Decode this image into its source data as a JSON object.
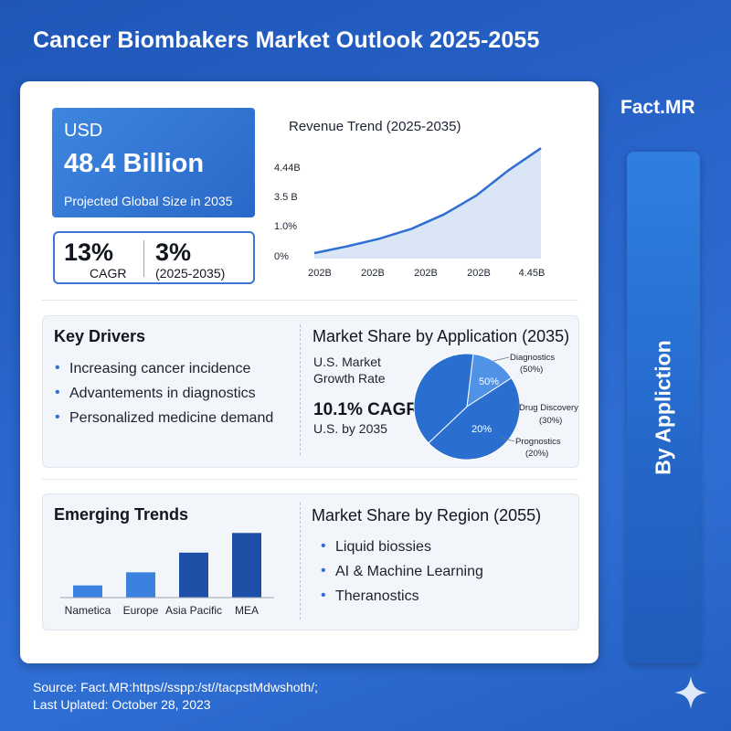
{
  "header": {
    "title": "Cancer Biombakers Market Outlook 2025-2055"
  },
  "brand": "Fact.MR",
  "side_tab": {
    "label": "By Appliction"
  },
  "kpi": {
    "currency": "USD",
    "value": "48.4 Billion",
    "caption": "Projected Global Size in 2035",
    "cagr_value": "13%",
    "cagr_label": "CAGR",
    "period_value": "3%",
    "period_label": "(2025-2035)"
  },
  "drivers": {
    "title": "Key Drivers",
    "items": [
      "Increasing cancer incidence",
      "Advantements in diagnostics",
      "Personalized medicine demand"
    ]
  },
  "trends": {
    "title": "Emerging Trends"
  },
  "region": {
    "title": "Market Share by Region (2055)",
    "items": [
      "Liquid biossies",
      "AI & Machine Learning",
      "Theranostics"
    ]
  },
  "application": {
    "title": "Market Share by Application (2035)",
    "us_label_1": "U.S. Market",
    "us_label_2": "Growth Rate",
    "us_value": "10.1% CAGR",
    "us_caption": "U.S. by 2035"
  },
  "footer": {
    "source": "Source: Fact.MR:https//sspp:/st//tacpstMdwshoth/;",
    "updated": "Last Uplated: October 28, 2023"
  },
  "colors": {
    "background": "#2a66cc",
    "accent": "#2f6fd4",
    "area_fill": "#d6e2f5",
    "bar_light": "#3b82e0",
    "bar_dark": "#1e4fa6",
    "pie_main": "#2a6fd0",
    "pie_light": "#4f92e6"
  },
  "icons": {
    "sparkle": "sparkle-icon"
  },
  "chart_data": [
    {
      "type": "area",
      "title": "Revenue Trend (2025-2035)",
      "x_tick_labels": [
        "202B",
        "202B",
        "202B",
        "202B",
        "4.45B"
      ],
      "y_tick_labels": [
        "0%",
        "1.0%",
        "3.5 B",
        "4.44B"
      ],
      "y": [
        0.05,
        0.11,
        0.18,
        0.27,
        0.4,
        0.57,
        0.8,
        1.0
      ],
      "ylim": [
        0,
        1.2
      ]
    },
    {
      "type": "bar",
      "categories": [
        "Nametica",
        "Europe",
        "Asia Pacific",
        "MEA"
      ],
      "values": [
        13,
        27,
        48,
        69
      ],
      "ylim": [
        0,
        80
      ]
    },
    {
      "type": "pie",
      "slices": [
        {
          "name": "Diagnostics",
          "value": 50,
          "pct_label": "(50%)",
          "inner_label": "50%"
        },
        {
          "name": "Drug Discovery",
          "value": 30,
          "pct_label": "(30%)",
          "inner_label": ""
        },
        {
          "name": "Prognostics",
          "value": 20,
          "pct_label": "(20%)",
          "inner_label": "20%"
        }
      ]
    }
  ]
}
